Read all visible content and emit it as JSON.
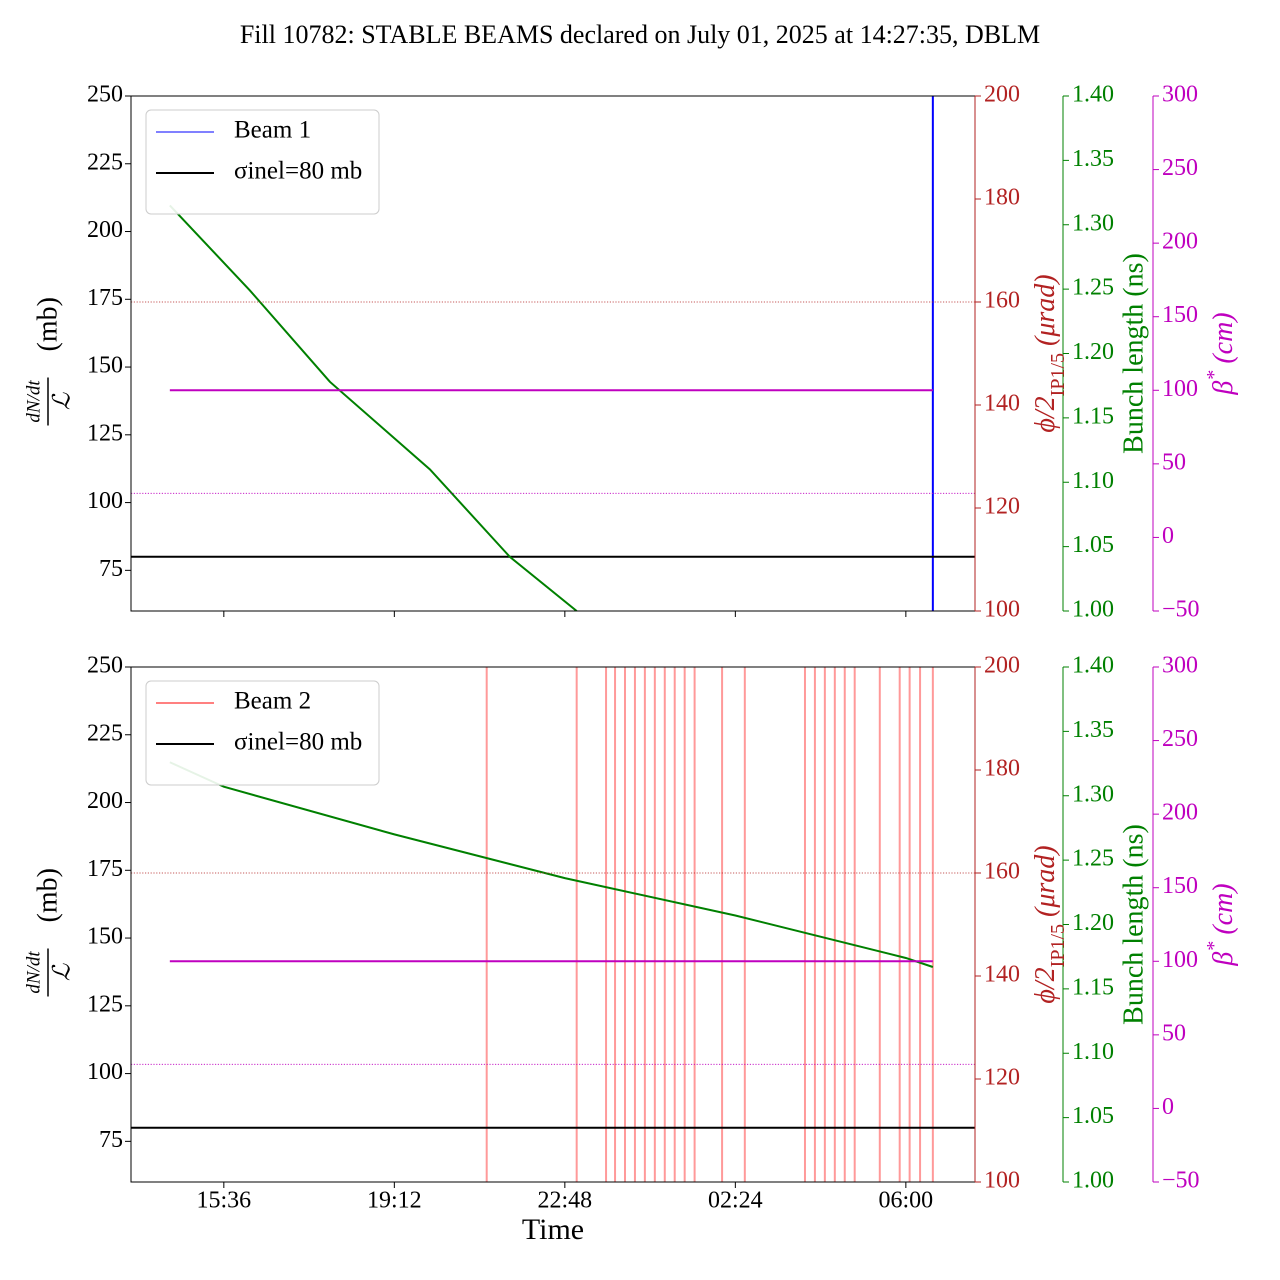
{
  "title": "Fill 10782: STABLE BEAMS declared on July 01, 2025 at 14:27:35, DBLM",
  "chart_data": [
    {
      "type": "line",
      "xlim": [
        13.64,
        31.46
      ],
      "xticks": [
        15.6,
        19.2,
        22.8,
        26.4,
        30
      ],
      "ylim": [
        60,
        250
      ],
      "yticks": [
        75,
        100,
        125,
        150,
        175,
        200,
        225,
        250
      ],
      "ylabel": {
        "numerator": "dN/dt",
        "denominator": "ℒ",
        "unit": "(mb)"
      },
      "y2lim": [
        100,
        200
      ],
      "y2ticks": [
        100,
        120,
        140,
        160,
        180,
        200
      ],
      "y2color": "#b22222",
      "y2label": [
        "ϕ/2",
        "IP1/5",
        "(μrad)"
      ],
      "y3lim": [
        1.0,
        1.4
      ],
      "y3color": "#008000",
      "y3ticks": [
        {
          "value": 1.0,
          "label": "1.00"
        },
        {
          "value": 1.05,
          "label": "1.05"
        },
        {
          "value": 1.1,
          "label": "1.10"
        },
        {
          "value": 1.15,
          "label": "1.15"
        },
        {
          "value": 1.2,
          "label": "1.20"
        },
        {
          "value": 1.25,
          "label": "1.25"
        },
        {
          "value": 1.3,
          "label": "1.30"
        },
        {
          "value": 1.35,
          "label": "1.35"
        },
        {
          "value": 1.4,
          "label": "1.40"
        }
      ],
      "y3label": "Bunch length (ns)",
      "y4lim": [
        -50,
        300
      ],
      "y4color": "#bf00bf",
      "y4ticks": [
        {
          "value": -50,
          "label": "−50"
        },
        0,
        50,
        100,
        150,
        200,
        250,
        300
      ],
      "y4label": [
        "β",
        "*",
        "(cm)"
      ],
      "legend": "upper left",
      "series": [
        {
          "name": "Beam 1",
          "color": "#0000ff",
          "axis": "y",
          "x": [
            30.57,
            30.57
          ],
          "values": [
            60,
            250
          ]
        },
        {
          "name": "σinel=80 mb",
          "color": "#000000",
          "axis": "y",
          "x": [
            13.64,
            31.46
          ],
          "values": [
            80,
            80
          ]
        },
        {
          "color": "#008000",
          "axis": "y3",
          "x": [
            14.46,
            16.15,
            17.84,
            19.95,
            21.64,
            23.05
          ],
          "values": [
            1.315,
            1.249,
            1.178,
            1.11,
            1.042,
            1.0
          ]
        },
        {
          "color": "#bf00bf",
          "axis": "y4",
          "x": [
            14.46,
            30.57
          ],
          "values": [
            100,
            100
          ]
        },
        {
          "color": "#b22222",
          "axis": "y2",
          "style": "dotted",
          "x": [
            13.64,
            31.46
          ],
          "values": [
            160,
            160
          ]
        },
        {
          "color": "#bf00bf",
          "axis": "y4",
          "style": "dotted",
          "x": [
            13.64,
            31.46
          ],
          "values": [
            30,
            30
          ]
        }
      ]
    },
    {
      "type": "line",
      "xlim": [
        13.64,
        31.46
      ],
      "xticks": [
        {
          "value": 15.6,
          "label": "15:36"
        },
        {
          "value": 19.2,
          "label": "19:12"
        },
        {
          "value": 22.8,
          "label": "22:48"
        },
        {
          "value": 26.4,
          "label": "02:24"
        },
        {
          "value": 30,
          "label": "06:00"
        }
      ],
      "xlabel": "Time",
      "ylim": [
        60,
        250
      ],
      "yticks": [
        75,
        100,
        125,
        150,
        175,
        200,
        225,
        250
      ],
      "ylabel": {
        "numerator": "dN/dt",
        "denominator": "ℒ",
        "unit": "(mb)"
      },
      "y2lim": [
        100,
        200
      ],
      "y2ticks": [
        100,
        120,
        140,
        160,
        180,
        200
      ],
      "y2color": "#b22222",
      "y2label": [
        "ϕ/2",
        "IP1/5",
        "(μrad)"
      ],
      "y3lim": [
        1.0,
        1.4
      ],
      "y3color": "#008000",
      "y3ticks": [
        {
          "value": 1.0,
          "label": "1.00"
        },
        {
          "value": 1.05,
          "label": "1.05"
        },
        {
          "value": 1.1,
          "label": "1.10"
        },
        {
          "value": 1.15,
          "label": "1.15"
        },
        {
          "value": 1.2,
          "label": "1.20"
        },
        {
          "value": 1.25,
          "label": "1.25"
        },
        {
          "value": 1.3,
          "label": "1.30"
        },
        {
          "value": 1.35,
          "label": "1.35"
        },
        {
          "value": 1.4,
          "label": "1.40"
        }
      ],
      "y3label": "Bunch length (ns)",
      "y4lim": [
        -50,
        300
      ],
      "y4color": "#bf00bf",
      "y4ticks": [
        {
          "value": -50,
          "label": "−50"
        },
        0,
        50,
        100,
        150,
        200,
        250,
        300
      ],
      "y4label": [
        "β",
        "*",
        "(cm)"
      ],
      "legend": "upper left",
      "series": [
        {
          "name": "Beam 2",
          "color": "#ff0000",
          "axis": "y",
          "x": [
            21.15,
            21.15,
            21.15,
            23.05,
            23.05,
            23.05,
            23.67,
            23.67,
            23.67,
            23.86,
            23.86,
            23.86,
            24.07,
            24.07,
            24.07,
            24.28,
            24.28,
            24.28,
            24.49,
            24.49,
            24.49,
            24.7,
            24.7,
            24.7,
            24.91,
            24.91,
            24.91,
            25.12,
            25.12,
            25.12,
            25.33,
            25.33,
            25.33,
            25.54,
            25.54,
            25.54,
            26.12,
            26.12,
            26.12,
            26.6,
            26.6,
            26.6,
            27.87,
            27.87,
            27.87,
            28.08,
            28.08,
            28.08,
            28.29,
            28.29,
            28.29,
            28.5,
            28.5,
            28.5,
            28.71,
            28.71,
            28.71,
            28.92,
            28.92,
            28.92,
            29.45,
            29.45,
            29.45,
            29.87,
            29.87,
            29.87,
            30.08,
            30.08,
            30.08,
            30.3,
            30.3,
            30.3,
            30.57,
            30.57
          ],
          "values": [
            60,
            250,
            null,
            60,
            250,
            null,
            60,
            250,
            null,
            60,
            250,
            null,
            60,
            250,
            null,
            60,
            250,
            null,
            60,
            250,
            null,
            60,
            250,
            null,
            60,
            250,
            null,
            60,
            250,
            null,
            60,
            250,
            null,
            60,
            250,
            null,
            60,
            250,
            null,
            60,
            250,
            null,
            60,
            250,
            null,
            60,
            250,
            null,
            60,
            250,
            null,
            60,
            250,
            null,
            60,
            250,
            null,
            60,
            250,
            null,
            60,
            250,
            null,
            60,
            250,
            null,
            60,
            250,
            null,
            60,
            250,
            null,
            60,
            250
          ]
        },
        {
          "name": "σinel=80 mb",
          "color": "#000000",
          "axis": "y",
          "x": [
            13.64,
            31.46
          ],
          "values": [
            80,
            80
          ]
        },
        {
          "color": "#008000",
          "axis": "y3",
          "x": [
            14.46,
            15.6,
            19.2,
            22.8,
            26.4,
            30.0,
            30.57
          ],
          "values": [
            1.326,
            1.307,
            1.27,
            1.236,
            1.207,
            1.174,
            1.167
          ]
        },
        {
          "color": "#bf00bf",
          "axis": "y4",
          "x": [
            14.46,
            30.57
          ],
          "values": [
            100,
            100
          ]
        },
        {
          "color": "#b22222",
          "axis": "y2",
          "style": "dotted",
          "x": [
            13.64,
            31.46
          ],
          "values": [
            160,
            160
          ]
        },
        {
          "color": "#bf00bf",
          "axis": "y4",
          "style": "dotted",
          "x": [
            13.64,
            31.46
          ],
          "values": [
            30,
            30
          ]
        }
      ]
    }
  ]
}
